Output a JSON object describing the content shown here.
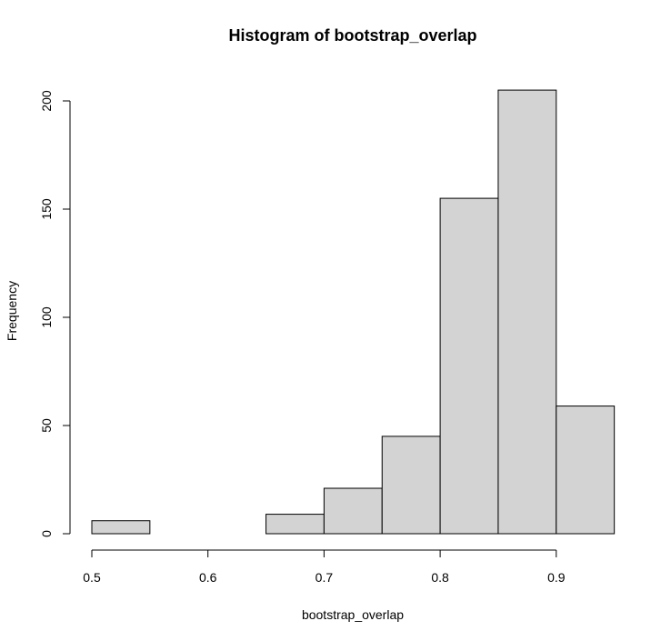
{
  "chart_data": {
    "type": "bar",
    "title": "Histogram of bootstrap_overlap",
    "xlabel": "bootstrap_overlap",
    "ylabel": "Frequency",
    "bins": [
      {
        "from": 0.5,
        "to": 0.55,
        "count": 6
      },
      {
        "from": 0.55,
        "to": 0.6,
        "count": 0
      },
      {
        "from": 0.6,
        "to": 0.65,
        "count": 0
      },
      {
        "from": 0.65,
        "to": 0.7,
        "count": 9
      },
      {
        "from": 0.7,
        "to": 0.75,
        "count": 21
      },
      {
        "from": 0.75,
        "to": 0.8,
        "count": 45
      },
      {
        "from": 0.8,
        "to": 0.85,
        "count": 155
      },
      {
        "from": 0.85,
        "to": 0.9,
        "count": 205
      },
      {
        "from": 0.9,
        "to": 0.95,
        "count": 59
      }
    ],
    "x_ticks": [
      "0.5",
      "0.6",
      "0.7",
      "0.8",
      "0.9"
    ],
    "y_ticks": [
      "0",
      "50",
      "100",
      "150",
      "200"
    ],
    "xlim": [
      0.5,
      0.95
    ],
    "ylim": [
      0,
      205
    ],
    "bar_fill": "#d3d3d3",
    "bar_stroke": "#000000",
    "grid": false
  }
}
